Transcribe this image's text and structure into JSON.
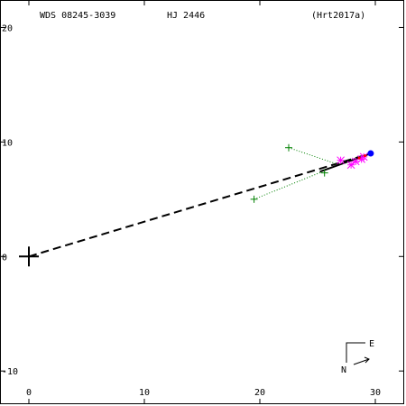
{
  "header": {
    "star_id": "WDS 08245-3039",
    "discoverer": "HJ 2446",
    "reference": "(Hrt2017a)"
  },
  "compass": {
    "east": "E",
    "north": "N"
  },
  "chart_data": {
    "type": "scatter",
    "xlim": [
      -2.5,
      32.5
    ],
    "ylim": [
      -12.9,
      22.4
    ],
    "x_ticks": [
      0,
      10,
      20,
      30
    ],
    "y_ticks": [
      -10,
      0,
      10,
      20
    ],
    "grid": false,
    "primary": {
      "x": 0,
      "y": 0,
      "marker": "large-plus",
      "color": "#000000"
    },
    "direction_line": {
      "from": [
        0,
        0
      ],
      "to": [
        29.6,
        9.0
      ],
      "style": "dashed",
      "color": "#000000"
    },
    "orbit_segment": {
      "from": [
        25.2,
        7.4
      ],
      "to": [
        29.6,
        9.0
      ],
      "color": "#000000"
    },
    "latest_point": {
      "x": 29.6,
      "y": 9.0,
      "marker": "filled-circle",
      "color": "#0000ff"
    },
    "series": [
      {
        "marker": "plus",
        "color": "#008000",
        "points": [
          {
            "x": 22.5,
            "y": 9.5,
            "ox": 26.6,
            "oy": 8.1
          },
          {
            "x": 25.6,
            "y": 7.3,
            "ox": 25.6,
            "oy": 7.5
          },
          {
            "x": 19.5,
            "y": 5.0,
            "ox": 25.4,
            "oy": 7.4
          }
        ]
      },
      {
        "marker": "asterisk",
        "color": "#ff00ff",
        "points": [
          {
            "x": 27.0,
            "y": 8.4
          },
          {
            "x": 27.9,
            "y": 8.0
          },
          {
            "x": 28.3,
            "y": 8.3
          },
          {
            "x": 28.8,
            "y": 8.5
          },
          {
            "x": 29.0,
            "y": 8.7
          }
        ]
      },
      {
        "marker": "dot",
        "color": "#ff0000",
        "points": [
          {
            "x": 28.6,
            "y": 8.6
          },
          {
            "x": 29.1,
            "y": 8.8
          }
        ]
      }
    ]
  }
}
